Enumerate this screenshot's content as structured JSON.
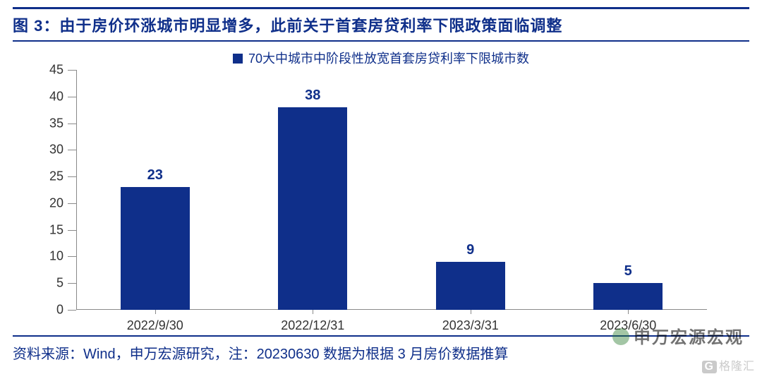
{
  "title": "图 3：由于房价环涨城市明显增多，此前关于首套房贷利率下限政策面临调整",
  "legend": {
    "text": "70大中城市中阶段性放宽首套房贷利率下限城市数",
    "swatch_color": "#0f2f8a"
  },
  "chart": {
    "type": "bar",
    "categories": [
      "2022/9/30",
      "2022/12/31",
      "2023/3/31",
      "2023/6/30"
    ],
    "values": [
      23,
      38,
      9,
      5
    ],
    "bar_color": "#0f2f8a",
    "value_label_color": "#0f2f8a",
    "value_label_fontsize": 20,
    "ylim": [
      0,
      45
    ],
    "ytick_step": 5,
    "bar_width_pct": 11,
    "axis_color": "#8a8a8a",
    "tick_label_color": "#333333",
    "tick_label_fontsize": 18,
    "background_color": "#ffffff"
  },
  "source": "资料来源：Wind，申万宏源研究，注：20230630 数据为根据 3 月房价数据推算",
  "watermarks": {
    "brand": "申万宏源宏观",
    "site": "格隆汇",
    "site_prefix": "G"
  },
  "colors": {
    "accent": "#0f2f8a",
    "border": "#0f2f8a",
    "text_muted": "#bdbdbd"
  }
}
